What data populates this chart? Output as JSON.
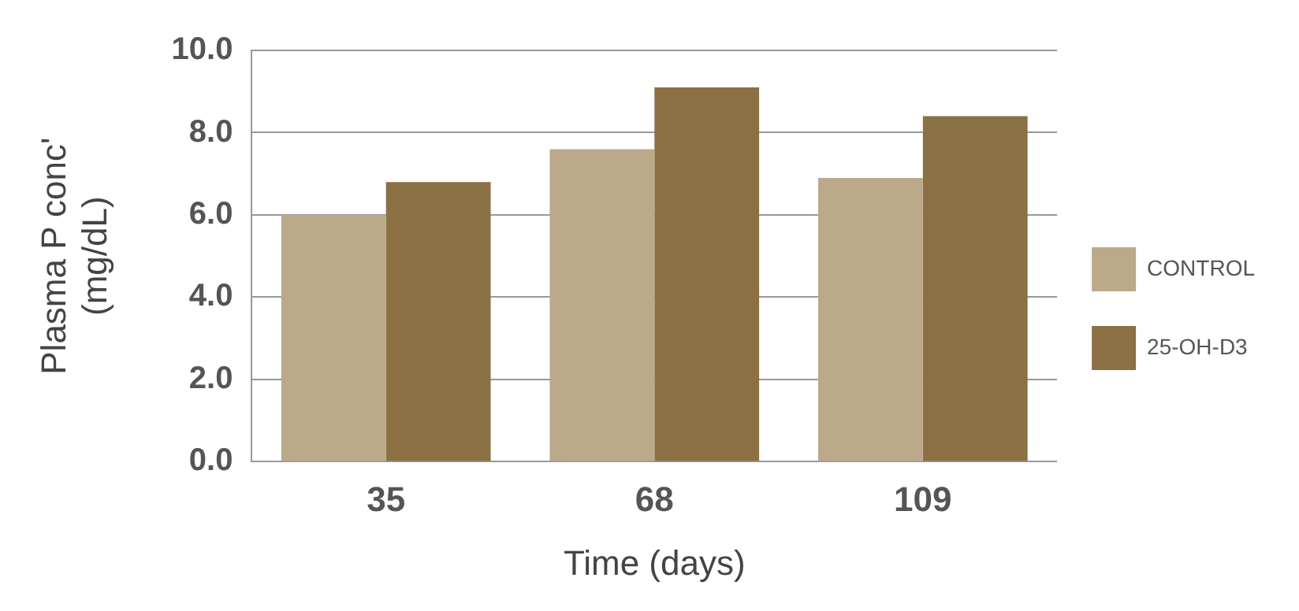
{
  "chart_data": {
    "type": "bar",
    "xlabel": "Time (days)",
    "ylabel": "Plasma P conc'\n(mg/dL)",
    "categories": [
      "35",
      "68",
      "109"
    ],
    "series": [
      {
        "name": "CONTROL",
        "color": "#bba98a",
        "values": [
          6.0,
          7.6,
          6.9
        ]
      },
      {
        "name": "25-OH-D3",
        "color": "#8a7043",
        "values": [
          6.8,
          9.1,
          8.4
        ]
      }
    ],
    "ylim": [
      0,
      10
    ],
    "yticks": [
      {
        "value": 0,
        "label": "0.0"
      },
      {
        "value": 2,
        "label": "2.0"
      },
      {
        "value": 4,
        "label": "4.0"
      },
      {
        "value": 6,
        "label": "6.0"
      },
      {
        "value": 8,
        "label": "8.0"
      },
      {
        "value": 10,
        "label": "10.0"
      }
    ],
    "grid": "y",
    "legend": "right"
  }
}
